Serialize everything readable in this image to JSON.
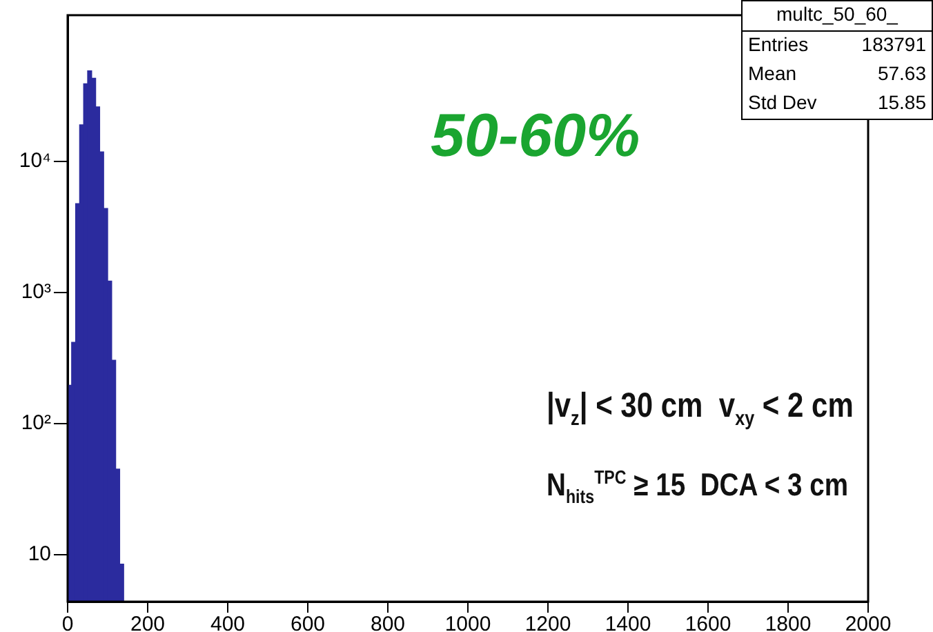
{
  "chart_data": {
    "type": "histogram",
    "bins": [
      0,
      10,
      20,
      30,
      40,
      50,
      60,
      70,
      80,
      90,
      100,
      110,
      120,
      130,
      140
    ],
    "values": [
      196,
      417,
      4750,
      19000,
      39000,
      49000,
      43000,
      26000,
      11800,
      4370,
      1220,
      304,
      45,
      8.5
    ],
    "color": "#2b2b9e",
    "xlim": [
      0,
      2000
    ],
    "xticks": [
      0,
      200,
      400,
      600,
      800,
      1000,
      1200,
      1400,
      1600,
      1800,
      2000
    ],
    "ylim": [
      4.4,
      130000
    ],
    "yticks": [
      10,
      {
        "value": 100,
        "label": "10²"
      },
      {
        "value": 1000,
        "label": "10³"
      },
      {
        "value": 10000,
        "label": "10⁴"
      }
    ],
    "log": "y",
    "grid": false,
    "legend": false,
    "annotations": [
      "multc_50_60_",
      "Entries 183791",
      "Mean 57.63",
      "Std Dev 15.85",
      "50-60%",
      "|v$_{z}$| < 30 cm  v$_{xy}$ < 2 cm",
      "N$_{hits}$$^{TPC}$ ≥ 15  DCA < 3 cm"
    ]
  }
}
